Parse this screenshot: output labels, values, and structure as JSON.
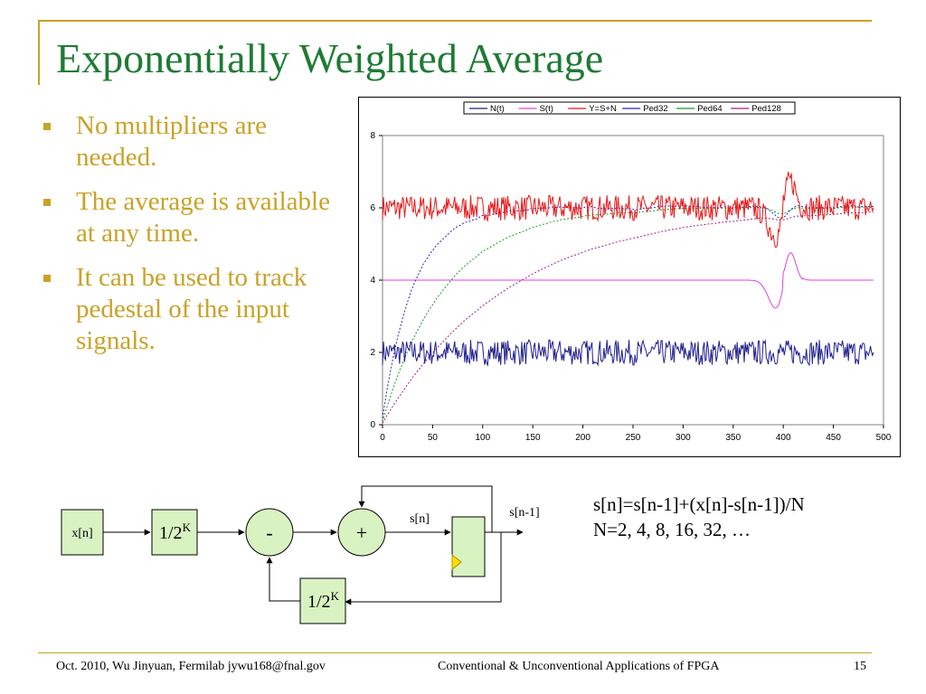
{
  "slide": {
    "title": "Exponentially Weighted Average",
    "bullets": [
      "No multipliers are needed.",
      "The average is available at any time.",
      "It can be used to track pedestal of the input signals."
    ],
    "formula_line1": "s[n]=s[n-1]+(x[n]-s[n-1])/N",
    "formula_line2": "N=2, 4, 8, 16, 32, …",
    "footer_left": "Oct. 2010, Wu Jinyuan, Fermilab jywu168@fnal.gov",
    "footer_center": "Conventional & Unconventional Applications of FPGA",
    "page_number": "15"
  },
  "diagram": {
    "input_label": "x[n]",
    "scale_label_base": "1/2",
    "scale_label_exp": "K",
    "subtract_label": "-",
    "add_label": "+",
    "s_label": "s[n]",
    "s_prev_label": "s[n-1]",
    "feedback_scale_base": "1/2",
    "feedback_scale_exp": "K"
  },
  "colors": {
    "title": "#1e7b34",
    "accent": "#c9a227",
    "register_fill": "#d9f2c2",
    "clock_marker": "#ffe000"
  },
  "chart_data": {
    "type": "line",
    "xlim": [
      0,
      500
    ],
    "ylim": [
      0,
      8
    ],
    "x_ticks": [
      "0",
      "50",
      "100",
      "150",
      "200",
      "250",
      "300",
      "350",
      "400",
      "450",
      "500"
    ],
    "y_ticks": [
      "0",
      "2",
      "4",
      "6",
      "8"
    ],
    "grid": "none",
    "legend_position": "top",
    "series": [
      {
        "name": "N(t)",
        "color": "#1f1f8f",
        "style": "solid",
        "description_values": {
          "mean": 2.0,
          "amplitude": 0.35
        }
      },
      {
        "name": "S(t)",
        "color": "#e040e0",
        "style": "solid",
        "values_summary": {
          "baseline": 4.0,
          "dip_min": 3.2,
          "dip_x": 395,
          "peak_max": 4.85,
          "peak_x": 405
        }
      },
      {
        "name": "Y=S+N",
        "color": "#e81818",
        "style": "solid",
        "values_summary": {
          "mean": 6.0,
          "amplitude": 0.4,
          "min": 4.9,
          "max": 7.1
        }
      },
      {
        "name": "Ped32",
        "color": "#2424c8",
        "style": "dotted",
        "values_summary": {
          "start": 0,
          "final": 6.0
        }
      },
      {
        "name": "Ped64",
        "color": "#1a9a1a",
        "style": "dotted",
        "values_summary": {
          "start": 0,
          "final": 6.0
        }
      },
      {
        "name": "Ped128",
        "color": "#a0208f",
        "style": "dotted",
        "values_summary": {
          "start": 0,
          "at_500": 5.7
        }
      }
    ]
  }
}
